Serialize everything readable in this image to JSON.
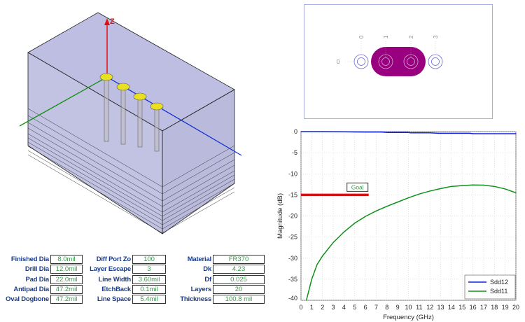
{
  "view3d": {
    "axis_label_z": "Z",
    "colors": {
      "box": "#8c8cc8",
      "pads": "#e8e020",
      "axis_x": "#1030d0",
      "axis_y": "#109010",
      "axis_z": "#e01010"
    }
  },
  "params": {
    "col1": [
      {
        "label": "Finished Dia",
        "value": "8.0mil"
      },
      {
        "label": "Drill Dia",
        "value": "12.0mil"
      },
      {
        "label": "Pad Dia",
        "value": "22.0mil"
      },
      {
        "label": "Antipad Dia",
        "value": "47.2mil"
      },
      {
        "label": "Oval Dogbone",
        "value": "47.2mil"
      }
    ],
    "col2": [
      {
        "label": "Diff Port Zo",
        "value": "100"
      },
      {
        "label": "Layer Escape",
        "value": "3"
      },
      {
        "label": "Line Width",
        "value": "3.60mil"
      },
      {
        "label": "EtchBack",
        "value": "0.1mil"
      },
      {
        "label": "Line Space",
        "value": "5.4mil"
      }
    ],
    "col3": [
      {
        "label": "Material",
        "value": "FR370"
      },
      {
        "label": "Dk",
        "value": "4.23"
      },
      {
        "label": "Df",
        "value": "0.025"
      },
      {
        "label": "Layers",
        "value": "20"
      },
      {
        "label": "Thickness",
        "value": "100.8 mil"
      }
    ]
  },
  "via_view": {
    "column_labels": [
      "0",
      "1",
      "2",
      "3"
    ],
    "row_label": "0",
    "dogbone_color": "#990080"
  },
  "chart_data": {
    "type": "line",
    "xlabel": "Frequency (GHz)",
    "ylabel": "Magnitude (dB)",
    "xlim": [
      0,
      20
    ],
    "ylim": [
      -40,
      0
    ],
    "xticks": [
      "0",
      "1",
      "2",
      "3",
      "4",
      "5",
      "6",
      "7",
      "8",
      "9",
      "10",
      "11",
      "12",
      "13",
      "14",
      "15",
      "16",
      "17",
      "18",
      "19",
      "20"
    ],
    "yticks": [
      "0",
      "-5",
      "-10",
      "-15",
      "-20",
      "-25",
      "-30",
      "-35",
      "-40"
    ],
    "grid": true,
    "legend_position": "bottom-right",
    "series": [
      {
        "name": "Sdd12",
        "color": "#1020e0",
        "x": [
          0,
          2,
          4,
          6,
          7.5,
          8,
          10,
          10.2,
          12,
          12.8,
          14,
          15.7,
          16,
          18,
          20
        ],
        "y": [
          0,
          0,
          -0.05,
          -0.1,
          -0.1,
          -0.2,
          -0.2,
          -0.3,
          -0.3,
          -0.4,
          -0.4,
          -0.4,
          -0.5,
          -0.5,
          -0.5
        ]
      },
      {
        "name": "Sdd11",
        "color": "#10901a",
        "x": [
          0.5,
          1,
          1.5,
          2,
          3,
          4,
          5,
          6,
          7,
          8,
          9,
          10,
          11,
          12,
          13,
          14,
          15,
          16,
          17,
          18,
          19,
          20
        ],
        "y": [
          -40,
          -35,
          -31.5,
          -29.5,
          -26.3,
          -23.8,
          -21.7,
          -20.1,
          -18.8,
          -17.7,
          -16.7,
          -15.7,
          -14.8,
          -14.1,
          -13.5,
          -13.0,
          -12.8,
          -12.65,
          -12.7,
          -13.0,
          -13.6,
          -14.5
        ]
      }
    ],
    "annotations": [
      {
        "text": "Goal",
        "type": "goal-line",
        "x": [
          0,
          6.3
        ],
        "y": -15,
        "color": "#ff0000"
      }
    ]
  }
}
